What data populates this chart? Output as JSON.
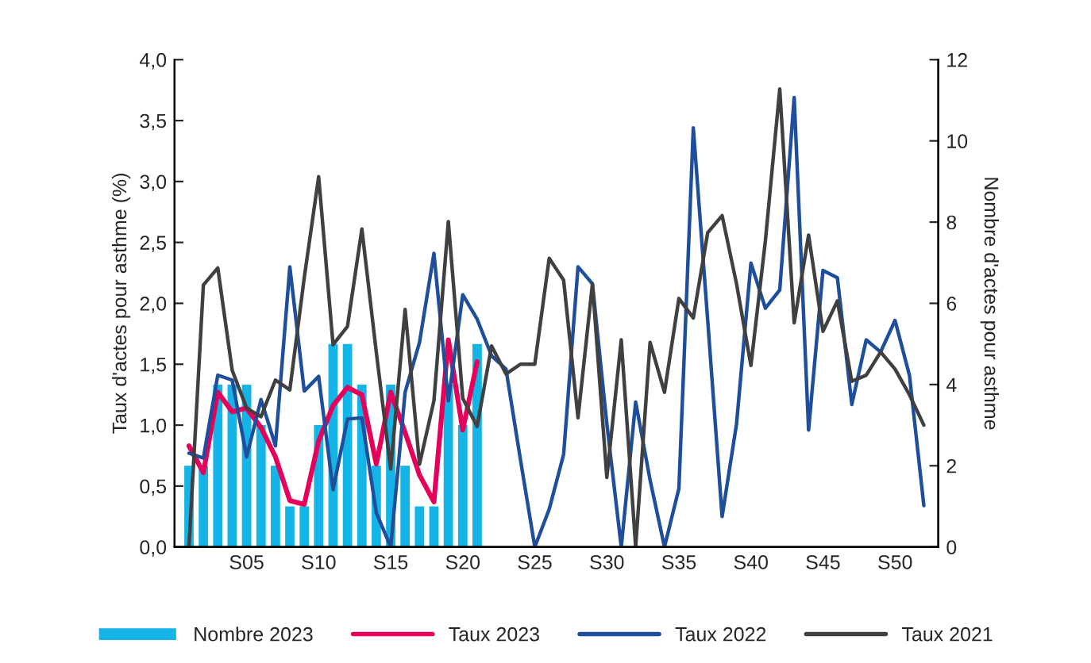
{
  "chart_data": {
    "type": "line",
    "ylabel": "Taux d'actes pour asthme (%)",
    "y2label": "Nombre d'actes pour asthme",
    "categories": [
      null,
      null,
      null,
      null,
      "S05",
      null,
      null,
      null,
      null,
      "S10",
      null,
      null,
      null,
      null,
      "S15",
      null,
      null,
      null,
      null,
      "S20",
      null,
      null,
      null,
      null,
      "S25",
      null,
      null,
      null,
      null,
      "S30",
      null,
      null,
      null,
      null,
      "S35",
      null,
      null,
      null,
      null,
      "S40",
      null,
      null,
      null,
      null,
      "S45",
      null,
      null,
      null,
      null,
      "S50",
      null,
      null
    ],
    "ylim": [
      0,
      4
    ],
    "yticks": [
      {
        "value": 0,
        "label": "0,0"
      },
      {
        "value": 0.5,
        "label": "0,5"
      },
      {
        "value": 1,
        "label": "1,0"
      },
      {
        "value": 1.5,
        "label": "1,5"
      },
      {
        "value": 2,
        "label": "2,0"
      },
      {
        "value": 2.5,
        "label": "2,5"
      },
      {
        "value": 3,
        "label": "3,0"
      },
      {
        "value": 3.5,
        "label": "3,5"
      },
      {
        "value": 4,
        "label": "4,0"
      }
    ],
    "y2lim": [
      0,
      12
    ],
    "y2ticks": [
      0,
      2,
      4,
      6,
      8,
      10,
      12
    ],
    "legend": "bottom",
    "series": [
      {
        "name": "Nombre 2023",
        "type": "bar",
        "axis": "y2",
        "color": "#14b4e6",
        "values": [
          2,
          2,
          4,
          4,
          4,
          3,
          2,
          1,
          1,
          3,
          5,
          5,
          4,
          2,
          4,
          2,
          1,
          1,
          4,
          3,
          5,
          null,
          null,
          null,
          null,
          null,
          null,
          null,
          null,
          null,
          null,
          null,
          null,
          null,
          null,
          null,
          null,
          null,
          null,
          null,
          null,
          null,
          null,
          null,
          null,
          null,
          null,
          null,
          null,
          null,
          null,
          null
        ]
      },
      {
        "name": "Taux 2023",
        "color": "#e5005a",
        "values": [
          0.83,
          0.61,
          1.27,
          1.11,
          1.14,
          0.98,
          0.74,
          0.38,
          0.35,
          0.87,
          1.16,
          1.31,
          1.25,
          0.68,
          1.27,
          0.94,
          0.59,
          0.37,
          1.7,
          0.96,
          1.52,
          null,
          null,
          null,
          null,
          null,
          null,
          null,
          null,
          null,
          null,
          null,
          null,
          null,
          null,
          null,
          null,
          null,
          null,
          null,
          null,
          null,
          null,
          null,
          null,
          null,
          null,
          null,
          null,
          null,
          null,
          null
        ]
      },
      {
        "name": "Taux 2022",
        "color": "#1f4e9c",
        "values": [
          0.77,
          0.73,
          1.41,
          1.37,
          0.74,
          1.21,
          0.83,
          2.3,
          1.28,
          1.4,
          0.47,
          1.05,
          1.06,
          0.28,
          0,
          1.27,
          1.68,
          2.41,
          1.2,
          2.07,
          1.87,
          1.57,
          1.46,
          0.72,
          0,
          0.31,
          0.76,
          2.3,
          2.16,
          1.01,
          0,
          1.19,
          0.55,
          0,
          0.48,
          3.44,
          1.86,
          0.25,
          1.01,
          2.33,
          1.96,
          2.11,
          3.69,
          0.96,
          2.27,
          2.21,
          1.17,
          1.7,
          1.6,
          1.86,
          1.41,
          0.34
        ]
      },
      {
        "name": "Taux 2021",
        "color": "#404040",
        "values": [
          0,
          2.15,
          2.29,
          1.45,
          1.14,
          1.07,
          1.37,
          1.29,
          2.21,
          3.04,
          1.66,
          1.81,
          2.61,
          1.6,
          0.64,
          1.95,
          0.68,
          1.2,
          2.67,
          1.22,
          0.99,
          1.65,
          1.42,
          1.5,
          1.5,
          2.37,
          2.19,
          1.06,
          2.16,
          0.57,
          1.7,
          0,
          1.68,
          1.27,
          2.04,
          1.88,
          2.58,
          2.72,
          2.16,
          1.49,
          2.51,
          3.76,
          1.84,
          2.56,
          1.77,
          2.02,
          1.36,
          1.41,
          1.6,
          1.46,
          1.25,
          1.0
        ]
      }
    ]
  }
}
